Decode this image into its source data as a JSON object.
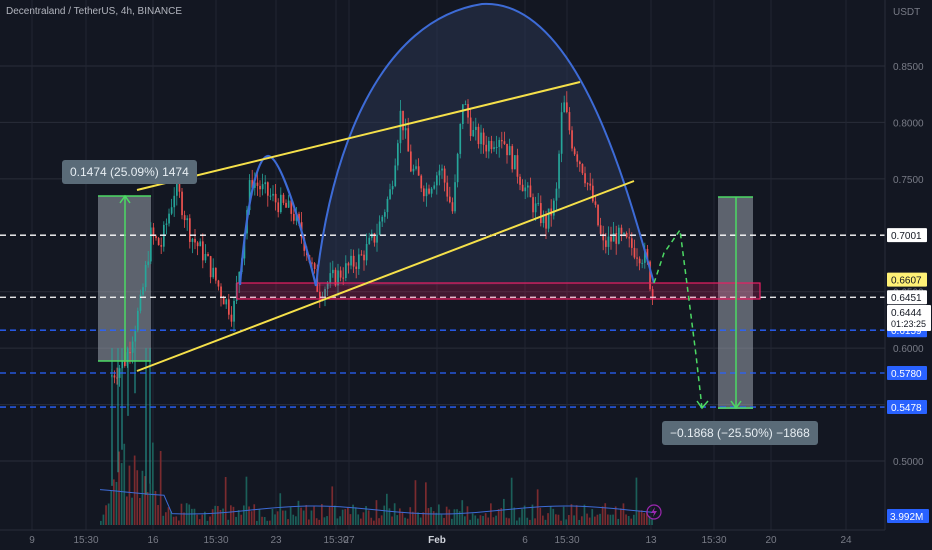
{
  "header": {
    "symbol_line": "Decentraland / TetherUS, 4h, BINANCE"
  },
  "axis": {
    "currency": "USDT",
    "ticks": [
      "0.8500",
      "0.8000",
      "0.7500",
      "0.6500",
      "0.6000",
      "0.5500",
      "0.5000"
    ],
    "time_ticks": [
      "9",
      "15:30",
      "16",
      "15:30",
      "23",
      "15:30",
      "27",
      "Feb",
      "6",
      "15:30",
      "13",
      "15:30",
      "20",
      "24"
    ]
  },
  "levels": [
    {
      "price": "0.7001",
      "color": "#ffffff",
      "label_bg": "#ffffff",
      "label_fg": "#131722",
      "style": "dashed"
    },
    {
      "price": "0.6607",
      "color": "#fff176",
      "label_bg": "#fff176",
      "label_fg": "#131722",
      "style": "label"
    },
    {
      "price": "0.6451",
      "color": "#ffffff",
      "label_bg": "#ffffff",
      "label_fg": "#131722",
      "style": "dashed"
    },
    {
      "price": "0.6159",
      "color": "#2962ff",
      "label_bg": "#2962ff",
      "label_fg": "#ffffff",
      "style": "dashed"
    },
    {
      "price": "0.5780",
      "color": "#2962ff",
      "label_bg": "#2962ff",
      "label_fg": "#ffffff",
      "style": "dashed"
    },
    {
      "price": "0.5478",
      "color": "#2962ff",
      "label_bg": "#2962ff",
      "label_fg": "#ffffff",
      "style": "dashed"
    }
  ],
  "last_price": {
    "price": "0.6444",
    "countdown": "01:23:25"
  },
  "volume_label": "3.992M",
  "measure_up": "0.1474 (25.09%) 1474",
  "measure_down": "−0.1868 (−25.50%) −1868",
  "colors": {
    "bull": "#26a69a",
    "bear": "#ef5350",
    "trend": "#f5e04a",
    "arc": "#3d6bd6",
    "zone": "#e91e63"
  }
}
